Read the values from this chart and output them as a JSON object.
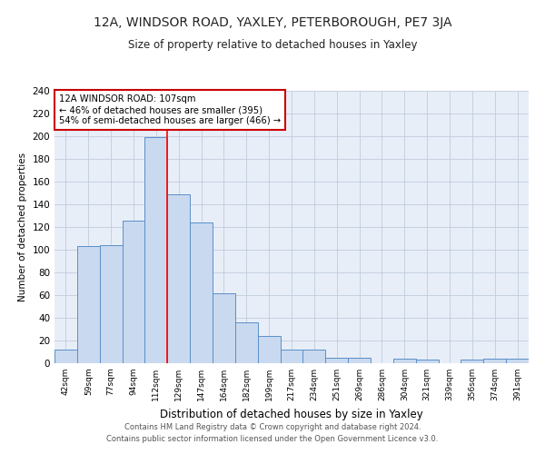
{
  "title": "12A, WINDSOR ROAD, YAXLEY, PETERBOROUGH, PE7 3JA",
  "subtitle": "Size of property relative to detached houses in Yaxley",
  "xlabel": "Distribution of detached houses by size in Yaxley",
  "ylabel": "Number of detached properties",
  "bin_labels": [
    "42sqm",
    "59sqm",
    "77sqm",
    "94sqm",
    "112sqm",
    "129sqm",
    "147sqm",
    "164sqm",
    "182sqm",
    "199sqm",
    "217sqm",
    "234sqm",
    "251sqm",
    "269sqm",
    "286sqm",
    "304sqm",
    "321sqm",
    "339sqm",
    "356sqm",
    "374sqm",
    "391sqm"
  ],
  "bar_heights": [
    12,
    103,
    104,
    126,
    199,
    149,
    124,
    62,
    36,
    24,
    12,
    12,
    5,
    5,
    0,
    4,
    3,
    0,
    3,
    4,
    4
  ],
  "bar_color": "#c9d9ef",
  "bar_edge_color": "#5b8fc9",
  "grid_color": "#c0ccdd",
  "background_color": "#e8eef8",
  "red_line_x": 4.5,
  "annotation_text": "12A WINDSOR ROAD: 107sqm\n← 46% of detached houses are smaller (395)\n54% of semi-detached houses are larger (466) →",
  "annotation_box_color": "#ffffff",
  "annotation_box_edge": "#cc0000",
  "footer_line1": "Contains HM Land Registry data © Crown copyright and database right 2024.",
  "footer_line2": "Contains public sector information licensed under the Open Government Licence v3.0.",
  "ylim": [
    0,
    240
  ],
  "yticks": [
    0,
    20,
    40,
    60,
    80,
    100,
    120,
    140,
    160,
    180,
    200,
    220,
    240
  ]
}
